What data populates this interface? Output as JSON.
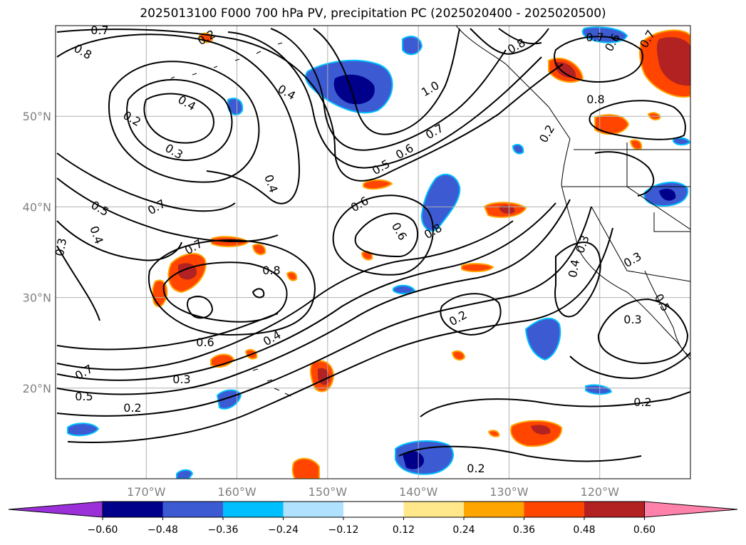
{
  "title": "2025013100 F000 700 hPa PV, precipitation PC (2025020400 - 2025020500)",
  "map": {
    "lon_range": [
      -180,
      -110
    ],
    "lat_range": [
      10,
      60
    ],
    "lat_labels": [
      "50°N",
      "40°N",
      "30°N",
      "20°N"
    ],
    "lon_labels": [
      "170°W",
      "160°W",
      "150°W",
      "140°W",
      "130°W",
      "120°W"
    ],
    "grid": true
  },
  "contour_labels": [
    "0.7",
    "0.8",
    "0.2",
    "0.4",
    "1.0",
    "0.4",
    "0.8",
    "0.7",
    "0.2",
    "0.3",
    "0.4",
    "0.5",
    "0.6",
    "0.7",
    "0.8",
    "0.6",
    "0.8",
    "0.5",
    "0.4",
    "0.3",
    "0.7",
    "0.6",
    "0.7",
    "0.8",
    "0.6",
    "0.4",
    "0.3",
    "0.2",
    "0.7",
    "0.5",
    "0.2",
    "0.3",
    "0.3",
    "0.2",
    "0.2",
    "0.2",
    "0.3",
    "0.4",
    "0.5",
    "0.6",
    "0.7"
  ],
  "colorbar": {
    "ticks": [
      "−0.60",
      "−0.48",
      "−0.36",
      "−0.24",
      "−0.12",
      "0.12",
      "0.24",
      "0.36",
      "0.48",
      "0.60"
    ],
    "colors": [
      "#9b30d9",
      "#00008b",
      "#3c5ad2",
      "#00bfff",
      "#b0e2ff",
      "#ffffff",
      "#ffe88c",
      "#ffa500",
      "#ff4500",
      "#b22222",
      "#ff82ab"
    ]
  },
  "chart_data": {
    "type": "contour-map",
    "title": "2025013100 F000 700 hPa PV, precipitation PC (2025020400 - 2025020500)",
    "contour_levels": [
      0.2,
      0.3,
      0.4,
      0.5,
      0.6,
      0.7,
      0.8,
      1.0
    ],
    "shading_levels": [
      -0.6,
      -0.48,
      -0.36,
      -0.24,
      -0.12,
      0.12,
      0.24,
      0.36,
      0.48,
      0.6
    ],
    "xlim": [
      -180,
      -110
    ],
    "ylim": [
      10,
      60
    ]
  }
}
